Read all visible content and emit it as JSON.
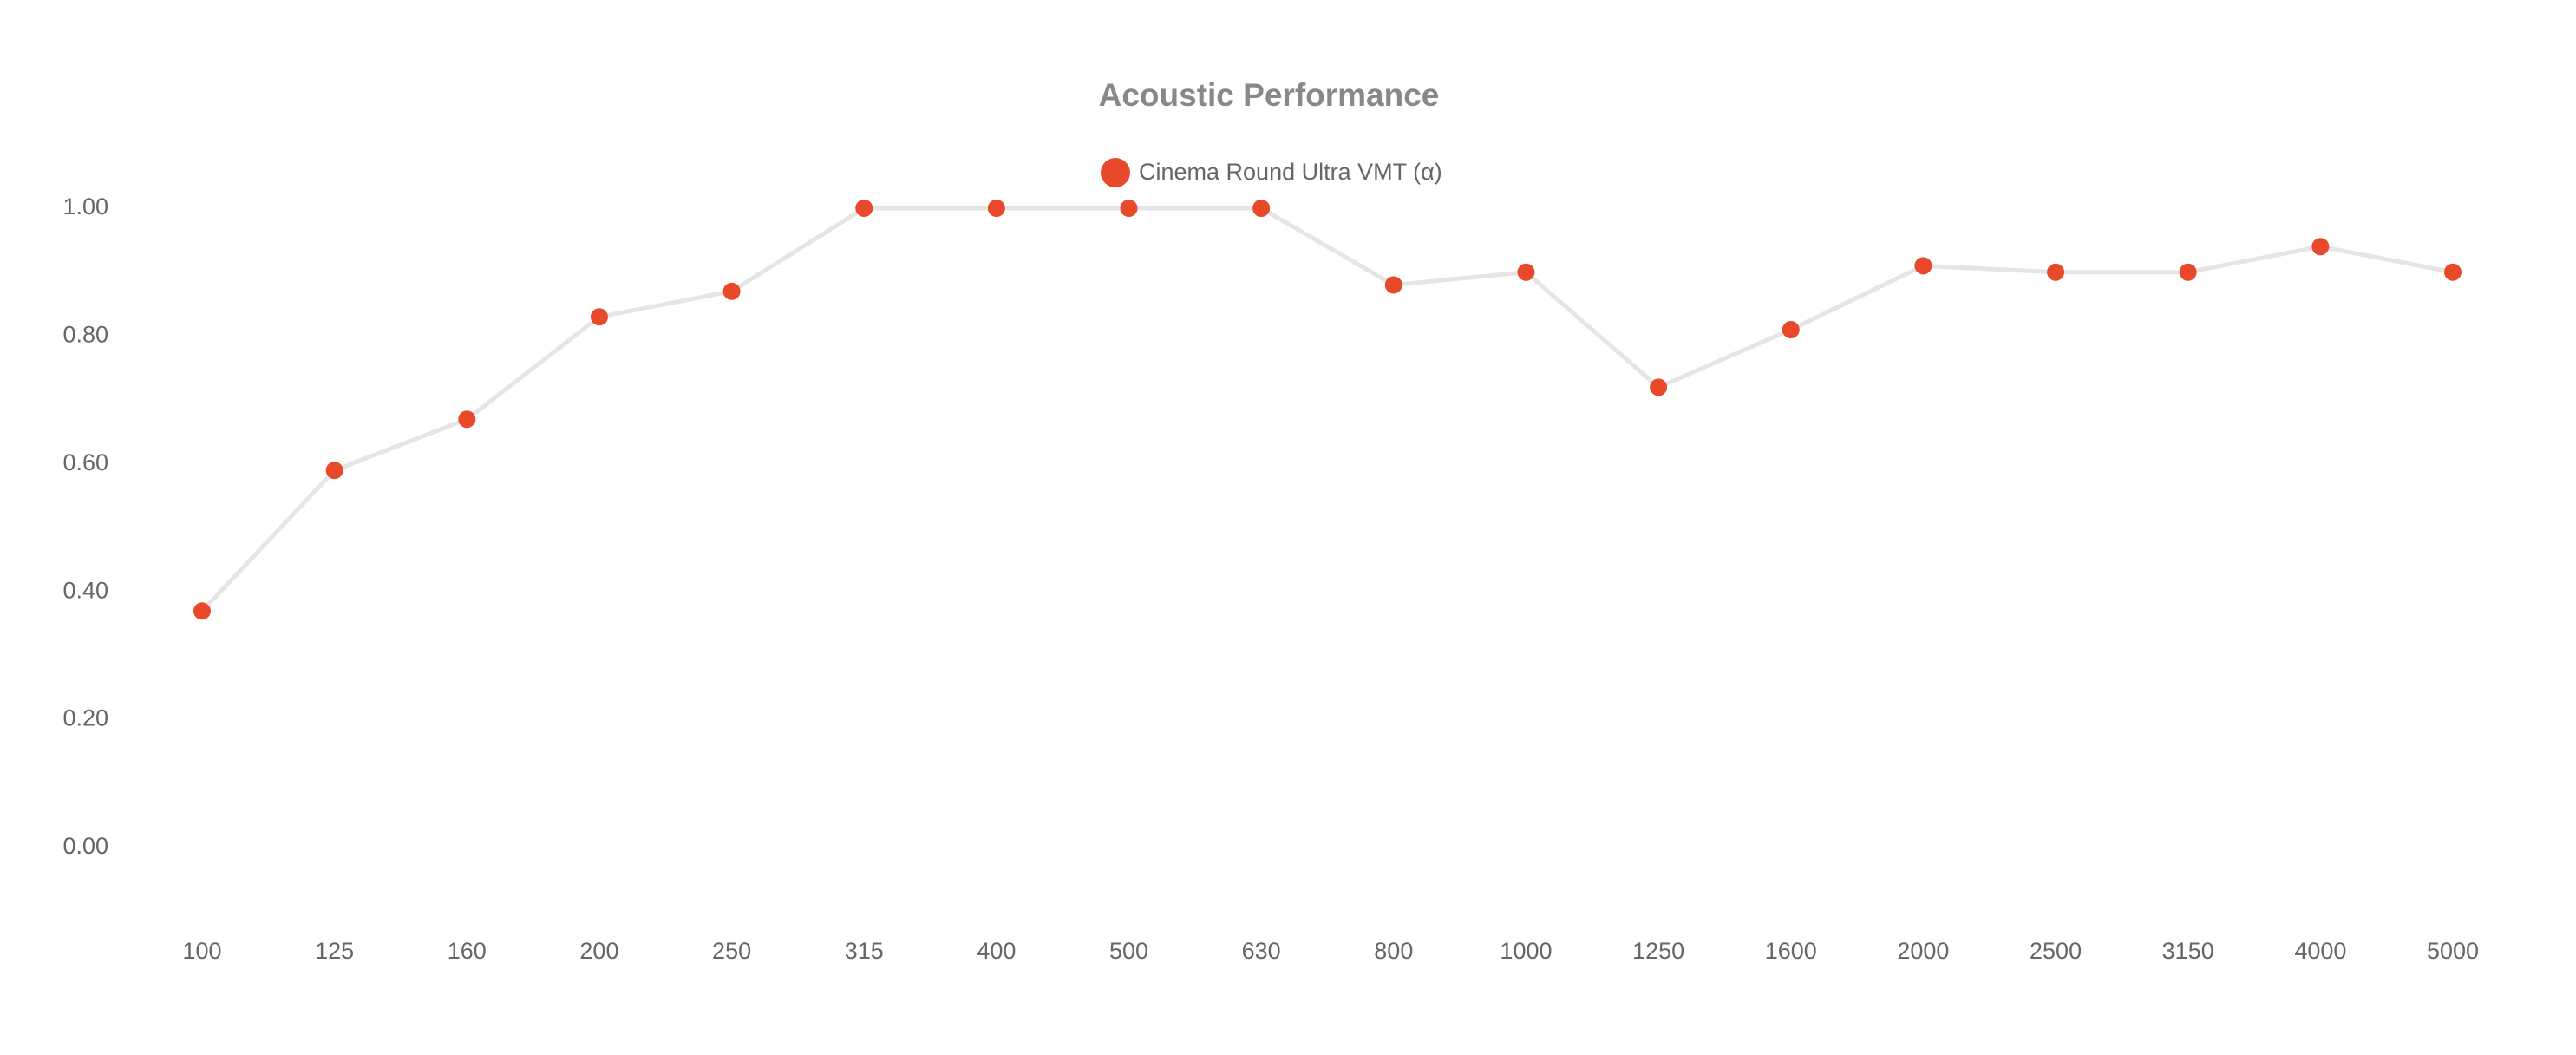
{
  "chart_data": {
    "type": "line",
    "title": "Acoustic Performance",
    "categories": [
      "100",
      "125",
      "160",
      "200",
      "250",
      "315",
      "400",
      "500",
      "630",
      "800",
      "1000",
      "1250",
      "1600",
      "2000",
      "2500",
      "3150",
      "4000",
      "5000"
    ],
    "series": [
      {
        "name": "Cinema Round Ultra VMT (α)",
        "color": "#e8492a",
        "values": [
          0.37,
          0.59,
          0.67,
          0.83,
          0.87,
          1.0,
          1.0,
          1.0,
          1.0,
          0.88,
          0.9,
          0.72,
          0.81,
          0.91,
          0.9,
          0.9,
          0.94,
          0.9
        ]
      }
    ],
    "line_color": "#e5e5e5",
    "ylim": [
      0,
      1
    ],
    "yticks": [
      {
        "value": 0,
        "label": "0.00"
      },
      {
        "value": 0.2,
        "label": "0.20"
      },
      {
        "value": 0.4,
        "label": "0.40"
      },
      {
        "value": 0.6,
        "label": "0.60"
      },
      {
        "value": 0.8,
        "label": "0.80"
      },
      {
        "value": 1,
        "label": "1.00"
      }
    ],
    "grid": false,
    "legend": "top"
  }
}
